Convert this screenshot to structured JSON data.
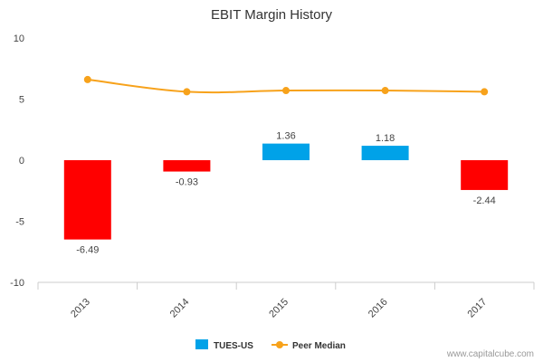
{
  "chart_data": {
    "type": "bar",
    "title": "EBIT Margin History",
    "categories": [
      "2013",
      "2014",
      "2015",
      "2016",
      "2017"
    ],
    "series": [
      {
        "name": "TUES-US",
        "kind": "bar",
        "values": [
          -6.49,
          -0.93,
          1.36,
          1.18,
          -2.44
        ],
        "labels": [
          "-6.49",
          "-0.93",
          "1.36",
          "1.18",
          "-2.44"
        ],
        "color_positive": "#00a2e8",
        "color_negative": "#ff0000"
      },
      {
        "name": "Peer Median",
        "kind": "line",
        "values": [
          6.6,
          5.6,
          5.7,
          5.7,
          5.6
        ],
        "color": "#f7a21b"
      }
    ],
    "ylim": [
      -10,
      10
    ],
    "yticks": [
      "10",
      "5",
      "0",
      "-5",
      "-10"
    ],
    "xlabel": "",
    "ylabel": "",
    "grid": false,
    "legend_position": "bottom-center"
  },
  "credit": "www.capitalcube.com"
}
